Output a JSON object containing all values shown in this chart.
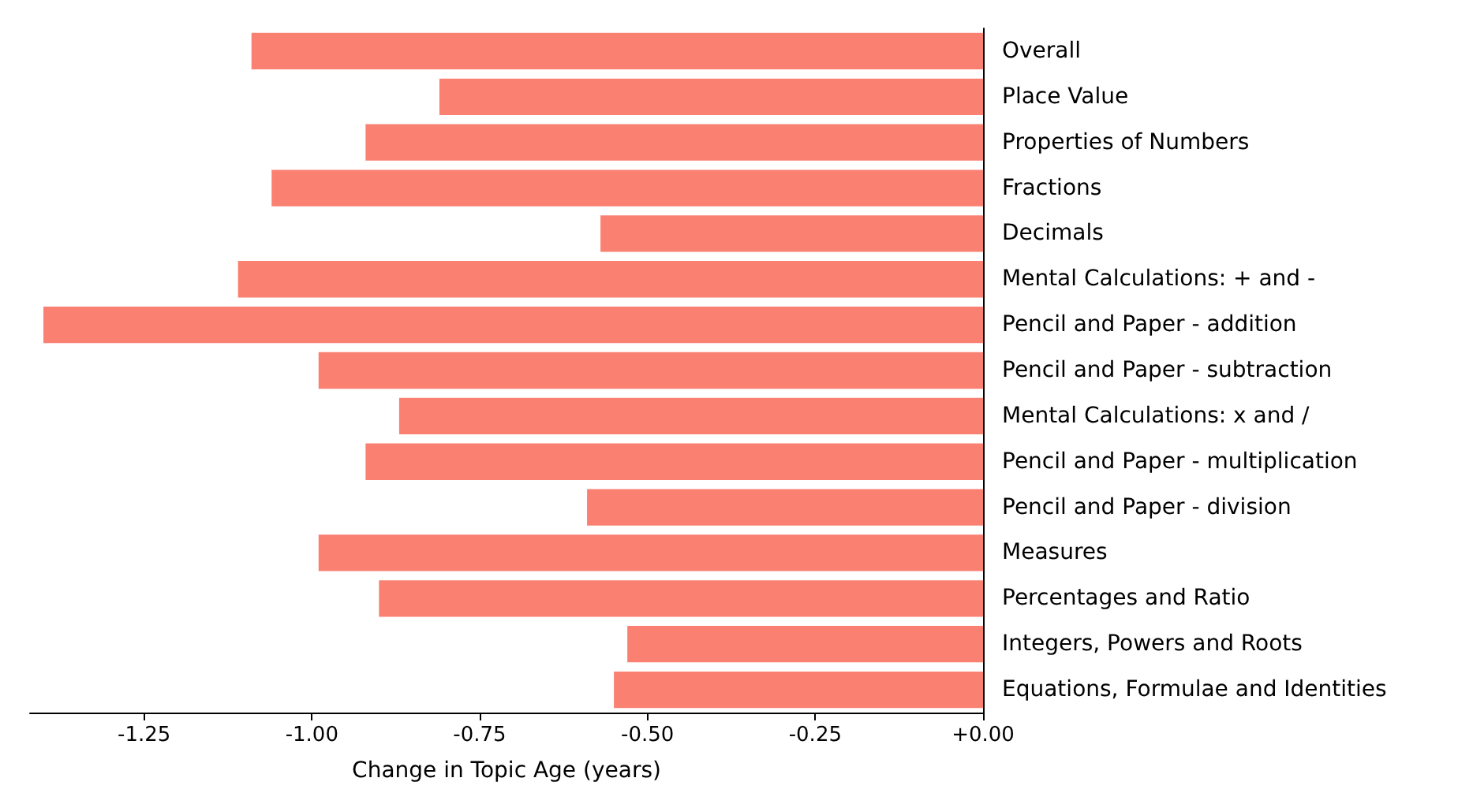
{
  "chart_data": {
    "type": "bar",
    "orientation": "horizontal",
    "xlabel": "Change in Topic Age (years)",
    "categories": [
      "Overall",
      "Place Value",
      "Properties of Numbers",
      "Fractions",
      "Decimals",
      "Mental Calculations: + and -",
      "Pencil and Paper - addition",
      "Pencil and Paper - subtraction",
      "Mental Calculations: x and /",
      "Pencil and Paper - multiplication",
      "Pencil and Paper - division",
      "Measures",
      "Percentages and Ratio",
      "Integers, Powers and Roots",
      "Equations, Formulae and Identities"
    ],
    "values": [
      -1.09,
      -0.81,
      -0.92,
      -1.06,
      -0.57,
      -1.11,
      -1.4,
      -0.99,
      -0.87,
      -0.92,
      -0.59,
      -0.99,
      -0.9,
      -0.53,
      -0.55
    ],
    "color": "#fa8072",
    "xlim": [
      -1.42,
      0
    ],
    "xticks": [
      {
        "value": -1.25,
        "label": "-1.25"
      },
      {
        "value": -1,
        "label": "-1.00"
      },
      {
        "value": -0.75,
        "label": "-0.75"
      },
      {
        "value": -0.5,
        "label": "-0.50"
      },
      {
        "value": -0.25,
        "label": "-0.25"
      },
      {
        "value": 0,
        "label": "+0.00"
      }
    ],
    "grid": false
  }
}
